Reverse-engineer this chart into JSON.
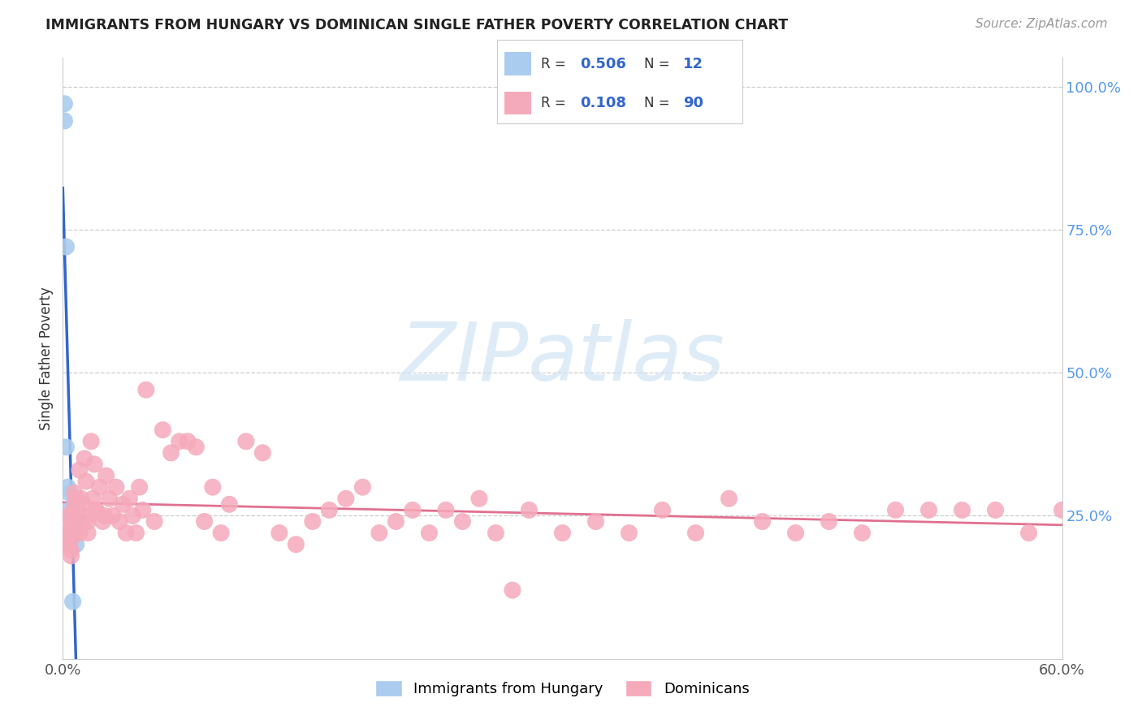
{
  "title": "IMMIGRANTS FROM HUNGARY VS DOMINICAN SINGLE FATHER POVERTY CORRELATION CHART",
  "source": "Source: ZipAtlas.com",
  "ylabel": "Single Father Poverty",
  "legend_hungary_R": "0.506",
  "legend_hungary_N": "12",
  "legend_dominican_R": "0.108",
  "legend_dominican_N": "90",
  "hungary_color": "#aaccee",
  "dominican_color": "#f5aabb",
  "hungary_line_color": "#3366cc",
  "dominican_line_color": "#e07090",
  "xlim": [
    0.0,
    0.6
  ],
  "ylim": [
    0.0,
    1.05
  ],
  "hungary_x": [
    0.001,
    0.001,
    0.002,
    0.002,
    0.003,
    0.004,
    0.004,
    0.005,
    0.005,
    0.006,
    0.007,
    0.008
  ],
  "hungary_y": [
    0.97,
    0.94,
    0.72,
    0.37,
    0.3,
    0.29,
    0.26,
    0.245,
    0.22,
    0.1,
    0.22,
    0.2
  ],
  "dominican_x": [
    0.003,
    0.004,
    0.004,
    0.005,
    0.005,
    0.006,
    0.007,
    0.008,
    0.009,
    0.01,
    0.011,
    0.012,
    0.013,
    0.014,
    0.015,
    0.016,
    0.017,
    0.018,
    0.019,
    0.02,
    0.022,
    0.024,
    0.026,
    0.028,
    0.03,
    0.032,
    0.034,
    0.036,
    0.038,
    0.04,
    0.042,
    0.044,
    0.046,
    0.048,
    0.05,
    0.055,
    0.06,
    0.065,
    0.07,
    0.075,
    0.08,
    0.085,
    0.09,
    0.095,
    0.1,
    0.11,
    0.12,
    0.13,
    0.14,
    0.15,
    0.16,
    0.17,
    0.18,
    0.19,
    0.2,
    0.21,
    0.22,
    0.23,
    0.24,
    0.25,
    0.26,
    0.27,
    0.28,
    0.3,
    0.32,
    0.34,
    0.36,
    0.38,
    0.4,
    0.42,
    0.44,
    0.46,
    0.48,
    0.5,
    0.52,
    0.54,
    0.56,
    0.58,
    0.6,
    0.003,
    0.004,
    0.005,
    0.006,
    0.007,
    0.008,
    0.009,
    0.01,
    0.015,
    0.02,
    0.025
  ],
  "dominican_y": [
    0.22,
    0.25,
    0.2,
    0.18,
    0.21,
    0.26,
    0.29,
    0.28,
    0.24,
    0.33,
    0.28,
    0.27,
    0.35,
    0.31,
    0.22,
    0.25,
    0.38,
    0.28,
    0.34,
    0.26,
    0.3,
    0.24,
    0.32,
    0.28,
    0.25,
    0.3,
    0.24,
    0.27,
    0.22,
    0.28,
    0.25,
    0.22,
    0.3,
    0.26,
    0.47,
    0.24,
    0.4,
    0.36,
    0.38,
    0.38,
    0.37,
    0.24,
    0.3,
    0.22,
    0.27,
    0.38,
    0.36,
    0.22,
    0.2,
    0.24,
    0.26,
    0.28,
    0.3,
    0.22,
    0.24,
    0.26,
    0.22,
    0.26,
    0.24,
    0.28,
    0.22,
    0.12,
    0.26,
    0.22,
    0.24,
    0.22,
    0.26,
    0.22,
    0.28,
    0.24,
    0.22,
    0.24,
    0.22,
    0.26,
    0.26,
    0.26,
    0.26,
    0.22,
    0.26,
    0.2,
    0.23,
    0.19,
    0.24,
    0.22,
    0.28,
    0.26,
    0.22,
    0.24,
    0.26,
    0.25
  ],
  "watermark_text": "ZIPatlas",
  "watermark_color": "#d0e4f4",
  "grid_color": "#cccccc",
  "right_tick_color": "#5599ee",
  "right_yticklabels": [
    "",
    "25.0%",
    "50.0%",
    "75.0%",
    "100.0%"
  ]
}
